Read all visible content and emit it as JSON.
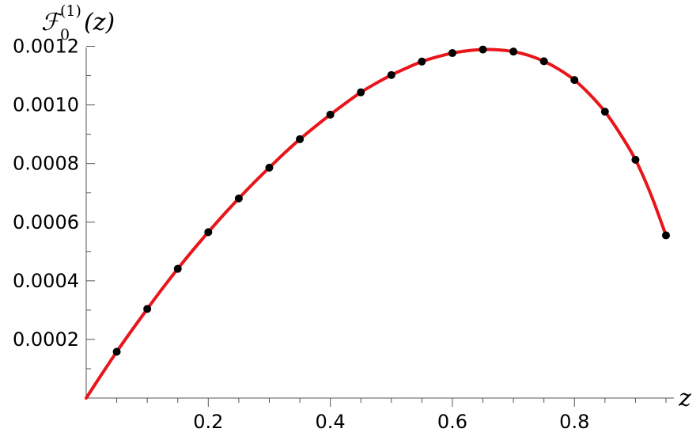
{
  "chart_data": {
    "type": "scatter",
    "title": "",
    "xlabel": "z",
    "ylabel": {
      "symbol": "ℱ",
      "subscript": "0",
      "superscript": "(1)",
      "argument": "(z)"
    },
    "xlim": [
      0,
      0.95
    ],
    "ylim": [
      0,
      0.00125
    ],
    "x_ticks": [
      0.2,
      0.4,
      0.6,
      0.8
    ],
    "x_tick_labels": [
      "0.2",
      "0.4",
      "0.6",
      "0.8"
    ],
    "y_ticks": [
      0.0002,
      0.0004,
      0.0006,
      0.0008,
      0.001,
      0.0012
    ],
    "y_tick_labels": [
      "0.0002",
      "0.0004",
      "0.0006",
      "0.0008",
      "0.0010",
      "0.0012"
    ],
    "grid": false,
    "legend": "none",
    "colors": {
      "curve": "#e8161b",
      "points": "#000000"
    },
    "series": [
      {
        "kind": "points",
        "x": [
          0.05,
          0.1,
          0.15,
          0.2,
          0.25,
          0.3,
          0.35,
          0.4,
          0.45,
          0.5,
          0.55,
          0.6,
          0.65,
          0.7,
          0.75,
          0.8,
          0.85,
          0.9,
          0.95
        ],
        "y": [
          0.000158,
          0.000304,
          0.000441,
          0.000566,
          0.000681,
          0.000786,
          0.000883,
          0.000967,
          0.001043,
          0.001102,
          0.001148,
          0.001177,
          0.001189,
          0.001182,
          0.001149,
          0.001085,
          0.000977,
          0.000813,
          0.000555
        ],
        "x_err": [
          0.004,
          0.004,
          0,
          0,
          0,
          0,
          0,
          0,
          0,
          0,
          0,
          0,
          0,
          0,
          0,
          0,
          0,
          0,
          0
        ]
      },
      {
        "kind": "curve",
        "x": [
          0,
          0.025,
          0.05,
          0.075,
          0.1,
          0.125,
          0.15,
          0.175,
          0.2,
          0.225,
          0.25,
          0.275,
          0.3,
          0.325,
          0.35,
          0.375,
          0.4,
          0.425,
          0.45,
          0.475,
          0.5,
          0.525,
          0.55,
          0.575,
          0.6,
          0.625,
          0.65,
          0.675,
          0.7,
          0.725,
          0.75,
          0.775,
          0.8,
          0.825,
          0.85,
          0.875,
          0.9,
          0.925,
          0.95
        ],
        "y": [
          0,
          8e-05,
          0.000158,
          0.000232,
          0.000304,
          0.000374,
          0.000441,
          0.000505,
          0.000566,
          0.000625,
          0.000681,
          0.000735,
          0.000786,
          0.000836,
          0.000883,
          0.000926,
          0.000967,
          0.001006,
          0.001043,
          0.001074,
          0.001102,
          0.001126,
          0.001148,
          0.001164,
          0.001177,
          0.001185,
          0.001189,
          0.001188,
          0.001182,
          0.001169,
          0.001149,
          0.001121,
          0.001085,
          0.001036,
          0.000977,
          0.000901,
          0.000813,
          0.000696,
          0.000555
        ]
      }
    ]
  }
}
